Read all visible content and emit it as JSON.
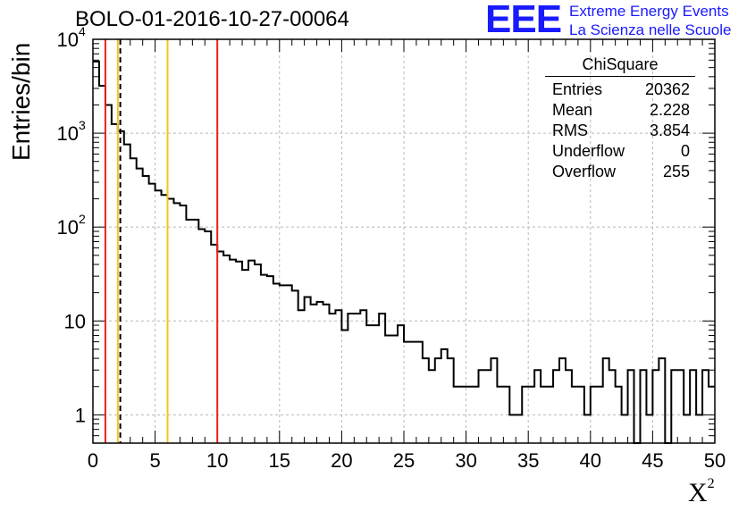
{
  "chart_data": {
    "type": "histogram",
    "title": "BOLO-01-2016-10-27-00064",
    "xlabel": "X",
    "xlabel_sup": "2",
    "ylabel": "Entries/bin",
    "y_scale": "log",
    "xlim": [
      0,
      50
    ],
    "ylim": [
      0.5,
      10000
    ],
    "bin_width": 0.5,
    "x_ticks": [
      "0",
      "5",
      "10",
      "15",
      "20",
      "25",
      "30",
      "35",
      "40",
      "45",
      "50"
    ],
    "y_ticks": [
      {
        "value": 1,
        "label": "1"
      },
      {
        "value": 10,
        "label": "10"
      },
      {
        "value": 100,
        "label": "10",
        "sup": "2"
      },
      {
        "value": 1000,
        "label": "10",
        "sup": "3"
      },
      {
        "value": 10000,
        "label": "10",
        "sup": "4"
      }
    ],
    "grid": true,
    "counts": [
      5800,
      3200,
      2000,
      1250,
      1050,
      760,
      540,
      420,
      350,
      290,
      245,
      220,
      200,
      180,
      170,
      120,
      120,
      95,
      90,
      65,
      55,
      50,
      45,
      43,
      35,
      44,
      40,
      31,
      30,
      25,
      24,
      24,
      21,
      13,
      18,
      15,
      16,
      15,
      12,
      13,
      8,
      12,
      12,
      13,
      9,
      9,
      12,
      7,
      7,
      9,
      6,
      6,
      6,
      4,
      3,
      4,
      5,
      4,
      2,
      2,
      2,
      2,
      3,
      3,
      4,
      2,
      2,
      1,
      1,
      2,
      2,
      3,
      2,
      2,
      3,
      4,
      3,
      2,
      2,
      1,
      2,
      2,
      4,
      3,
      2,
      1,
      3,
      0,
      3,
      1,
      3,
      4,
      0,
      3,
      3,
      1,
      3,
      1,
      3,
      2
    ],
    "vlines": [
      {
        "x": 1,
        "color": "#e8201c",
        "style": "solid"
      },
      {
        "x": 2,
        "color": "#f2c61f",
        "style": "solid"
      },
      {
        "x": 2.2,
        "color": "#000000",
        "style": "dashed"
      },
      {
        "x": 6,
        "color": "#f2c61f",
        "style": "solid"
      },
      {
        "x": 10,
        "color": "#e8201c",
        "style": "solid"
      }
    ]
  },
  "stats": {
    "title": "ChiSquare",
    "rows": [
      {
        "label": "Entries",
        "value": "20362"
      },
      {
        "label": "Mean",
        "value": "2.228"
      },
      {
        "label": "RMS",
        "value": "3.854"
      },
      {
        "label": "Underflow",
        "value": "0"
      },
      {
        "label": "Overflow",
        "value": "255"
      }
    ]
  },
  "brand": {
    "logo": "EEE",
    "line1": "Extreme Energy Events",
    "line2": "La Scienza nelle Scuole"
  }
}
